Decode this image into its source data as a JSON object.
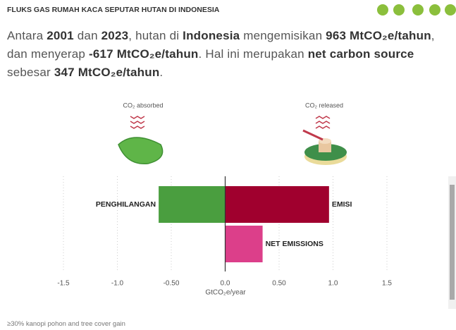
{
  "header": {
    "title": "FLUKS GAS RUMAH KACA SEPUTAR HUTAN DI INDONESIA"
  },
  "headline": [
    {
      "text": "Antara ",
      "bold": false
    },
    {
      "text": "2001",
      "bold": true
    },
    {
      "text": " dan ",
      "bold": false
    },
    {
      "text": "2023",
      "bold": true
    },
    {
      "text": ", hutan di ",
      "bold": false
    },
    {
      "text": "Indonesia",
      "bold": true
    },
    {
      "text": " mengemisikan ",
      "bold": false
    },
    {
      "text": "963 MtCO₂e/tahun",
      "bold": true
    },
    {
      "text": ", dan menyerap ",
      "bold": false
    },
    {
      "text": "-617 MtCO₂e/tahun",
      "bold": true
    },
    {
      "text": ". Hal ini merupakan ",
      "bold": false
    },
    {
      "text": "net carbon source",
      "bold": true
    },
    {
      "text": " sebesar ",
      "bold": false
    },
    {
      "text": "347 MtCO₂e/tahun",
      "bold": true
    },
    {
      "text": ".",
      "bold": false
    }
  ],
  "icons": {
    "absorbed": "CO₂ absorbed",
    "released": "CO₂ released"
  },
  "chart_data": {
    "type": "hbar",
    "categories": [
      "PENGHILANGAN",
      "EMISI",
      "NET EMISSIONS"
    ],
    "values": [
      -0.617,
      0.963,
      0.347
    ],
    "colors": [
      "#4a9e3f",
      "#a0002e",
      "#dc3f8a"
    ],
    "xlim": [
      -1.5,
      1.5
    ],
    "xticks": [
      -1.5,
      {
        "value": -1,
        "label": "-1.0"
      },
      {
        "value": -0.5,
        "label": "-0.50"
      },
      {
        "value": 0,
        "label": "0.0"
      },
      {
        "value": 0.5,
        "label": "0.50"
      },
      {
        "value": 1,
        "label": "1.0"
      },
      1.5
    ],
    "xlabel": "GtCO₂e/year",
    "grid": true
  },
  "footer": "≥30% kanopi pohon and tree cover gain"
}
